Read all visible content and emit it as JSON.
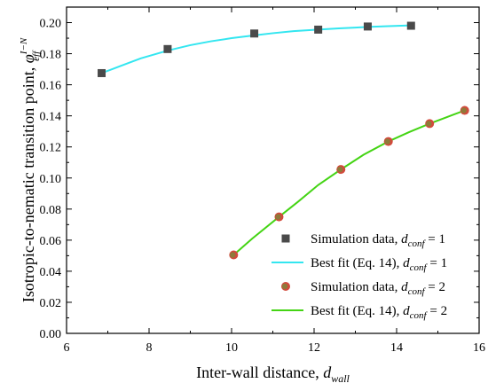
{
  "chart_data": {
    "type": "scatter",
    "xlabel": {
      "main": "Inter-wall distance, ",
      "var": "d",
      "sub": "wall"
    },
    "ylabel": {
      "main": "Isotropic-to-nematic transition point, ",
      "var": "φ",
      "sub": "eff",
      "sup": "I−N"
    },
    "xlim": [
      6,
      16
    ],
    "ylim": [
      0.0,
      0.21
    ],
    "x_ticks": [
      "6",
      "8",
      "10",
      "12",
      "14",
      "16"
    ],
    "y_ticks": [
      "0.00",
      "0.02",
      "0.04",
      "0.06",
      "0.08",
      "0.10",
      "0.12",
      "0.14",
      "0.16",
      "0.18",
      "0.20"
    ],
    "legend_position": "bottom-right",
    "series": [
      {
        "kind": "markers",
        "marker": "square",
        "color": "#4a4a4a",
        "legend": {
          "text": "Simulation data, ",
          "var": "d",
          "sub": "conf",
          "suffix": " = 1"
        },
        "x": [
          6.85,
          8.45,
          10.55,
          12.1,
          13.3,
          14.35
        ],
        "y": [
          0.1675,
          0.183,
          0.193,
          0.1955,
          0.1975,
          0.198
        ]
      },
      {
        "kind": "line",
        "color": "#33e6f0",
        "legend": {
          "text": "Best fit (Eq. 14), ",
          "var": "d",
          "sub": "conf",
          "suffix": " = 1"
        },
        "x": [
          6.85,
          7.3,
          7.8,
          8.45,
          9.0,
          9.5,
          10.0,
          10.55,
          11.0,
          11.5,
          12.1,
          12.6,
          13.0,
          13.3,
          13.8,
          14.35
        ],
        "y": [
          0.1675,
          0.172,
          0.177,
          0.182,
          0.1855,
          0.188,
          0.19,
          0.1918,
          0.1932,
          0.1945,
          0.1955,
          0.1963,
          0.1968,
          0.1972,
          0.1977,
          0.1982
        ]
      },
      {
        "kind": "markers",
        "marker": "circle",
        "color": "#d24a3c",
        "inner_color": "#8f7a3a",
        "legend": {
          "text": "Simulation data, ",
          "var": "d",
          "sub": "conf",
          "suffix": " = 2"
        },
        "x": [
          10.05,
          11.15,
          12.65,
          13.8,
          14.8,
          15.65
        ],
        "y": [
          0.0505,
          0.075,
          0.1055,
          0.1235,
          0.135,
          0.1435
        ]
      },
      {
        "kind": "line",
        "color": "#44d414",
        "legend": {
          "text": "Best fit (Eq. 14), ",
          "var": "d",
          "sub": "conf",
          "suffix": " = 2"
        },
        "x": [
          10.05,
          10.5,
          11.15,
          11.6,
          12.1,
          12.65,
          13.2,
          13.8,
          14.3,
          14.8,
          15.2,
          15.65
        ],
        "y": [
          0.0505,
          0.061,
          0.075,
          0.0845,
          0.0955,
          0.1055,
          0.115,
          0.1235,
          0.1295,
          0.135,
          0.139,
          0.1435
        ]
      }
    ]
  }
}
